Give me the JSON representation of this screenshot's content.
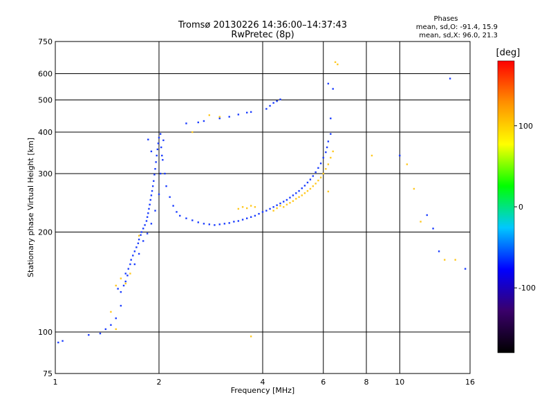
{
  "chart_data": {
    "type": "scatter",
    "title": "Tromsø 20130226 14:36:00–14:37:43",
    "subtitle": "RwPretec (8p)",
    "xlabel": "Frequency [MHz]",
    "ylabel": "Stationary phase Virtual Height [km]",
    "xscale": "log",
    "yscale": "log",
    "xlim": [
      1,
      16
    ],
    "ylim": [
      75,
      750
    ],
    "x_ticks": [
      1,
      2,
      4,
      6,
      8,
      10,
      16
    ],
    "y_ticks": [
      75,
      100,
      200,
      300,
      400,
      500,
      600,
      750
    ],
    "grid": true,
    "phase_box": {
      "title": "Phases",
      "line_o": "mean, sd,O: -91.4, 15.9",
      "line_x": "mean, sd,X:  96.0, 21.3"
    },
    "colorbar": {
      "label": "[deg]",
      "min": -180,
      "max": 180,
      "ticks": [
        100,
        0,
        -100
      ],
      "stops": [
        "#000000",
        "#3a006a",
        "#0000ff",
        "#00c8ff",
        "#00ff00",
        "#ffff00",
        "#ff9000",
        "#ff0000"
      ]
    },
    "series": [
      {
        "name": "O-mode",
        "mean_phase": -91.4,
        "sd_phase": 15.9,
        "color": "#1a3cff",
        "points": [
          [
            1.02,
            93
          ],
          [
            1.05,
            94
          ],
          [
            1.25,
            98
          ],
          [
            1.35,
            99
          ],
          [
            1.4,
            102
          ],
          [
            1.45,
            105
          ],
          [
            1.5,
            110
          ],
          [
            1.55,
            120
          ],
          [
            1.55,
            132
          ],
          [
            1.58,
            138
          ],
          [
            1.6,
            142
          ],
          [
            1.62,
            148
          ],
          [
            1.63,
            155
          ],
          [
            1.65,
            160
          ],
          [
            1.66,
            165
          ],
          [
            1.68,
            170
          ],
          [
            1.7,
            175
          ],
          [
            1.72,
            180
          ],
          [
            1.74,
            185
          ],
          [
            1.75,
            190
          ],
          [
            1.77,
            196
          ],
          [
            1.78,
            200
          ],
          [
            1.8,
            205
          ],
          [
            1.82,
            210
          ],
          [
            1.84,
            216
          ],
          [
            1.85,
            222
          ],
          [
            1.86,
            228
          ],
          [
            1.87,
            235
          ],
          [
            1.88,
            242
          ],
          [
            1.89,
            250
          ],
          [
            1.9,
            258
          ],
          [
            1.91,
            266
          ],
          [
            1.92,
            275
          ],
          [
            1.93,
            285
          ],
          [
            1.94,
            298
          ],
          [
            1.95,
            310
          ],
          [
            1.96,
            325
          ],
          [
            1.97,
            340
          ],
          [
            1.98,
            355
          ],
          [
            1.99,
            370
          ],
          [
            2.0,
            385
          ],
          [
            2.02,
            395
          ],
          [
            1.86,
            380
          ],
          [
            1.9,
            350
          ],
          [
            2.03,
            360
          ],
          [
            2.05,
            330
          ],
          [
            2.08,
            300
          ],
          [
            2.1,
            275
          ],
          [
            2.15,
            255
          ],
          [
            2.2,
            240
          ],
          [
            2.25,
            230
          ],
          [
            2.3,
            224
          ],
          [
            2.4,
            220
          ],
          [
            2.5,
            217
          ],
          [
            2.6,
            214
          ],
          [
            2.7,
            212
          ],
          [
            2.8,
            211
          ],
          [
            2.9,
            210
          ],
          [
            3.0,
            211
          ],
          [
            3.1,
            212
          ],
          [
            3.2,
            213
          ],
          [
            3.3,
            215
          ],
          [
            3.4,
            216
          ],
          [
            3.5,
            218
          ],
          [
            3.6,
            220
          ],
          [
            3.7,
            222
          ],
          [
            3.8,
            224
          ],
          [
            3.9,
            227
          ],
          [
            4.0,
            230
          ],
          [
            4.1,
            232
          ],
          [
            4.2,
            235
          ],
          [
            4.3,
            238
          ],
          [
            4.4,
            241
          ],
          [
            4.5,
            244
          ],
          [
            4.6,
            247
          ],
          [
            4.7,
            250
          ],
          [
            4.8,
            254
          ],
          [
            4.9,
            258
          ],
          [
            5.0,
            262
          ],
          [
            5.1,
            266
          ],
          [
            5.2,
            271
          ],
          [
            5.3,
            276
          ],
          [
            5.4,
            282
          ],
          [
            5.5,
            288
          ],
          [
            5.6,
            295
          ],
          [
            5.7,
            303
          ],
          [
            5.8,
            312
          ],
          [
            5.9,
            322
          ],
          [
            6.0,
            335
          ],
          [
            6.1,
            348
          ],
          [
            6.15,
            360
          ],
          [
            6.2,
            375
          ],
          [
            6.3,
            395
          ],
          [
            2.4,
            425
          ],
          [
            2.6,
            428
          ],
          [
            2.7,
            432
          ],
          [
            3.0,
            440
          ],
          [
            3.2,
            445
          ],
          [
            3.4,
            452
          ],
          [
            3.6,
            458
          ],
          [
            3.7,
            460
          ],
          [
            4.1,
            470
          ],
          [
            4.2,
            480
          ],
          [
            4.3,
            490
          ],
          [
            4.4,
            496
          ],
          [
            4.5,
            502
          ],
          [
            1.52,
            135
          ],
          [
            1.6,
            150
          ],
          [
            1.7,
            160
          ],
          [
            1.75,
            172
          ],
          [
            1.8,
            188
          ],
          [
            1.85,
            198
          ],
          [
            1.9,
            212
          ],
          [
            1.95,
            232
          ],
          [
            2.0,
            260
          ],
          [
            2.02,
            300
          ],
          [
            2.04,
            340
          ],
          [
            2.06,
            378
          ],
          [
            6.2,
            560
          ],
          [
            6.3,
            440
          ],
          [
            6.4,
            540
          ],
          [
            10.0,
            340
          ],
          [
            12.0,
            225
          ],
          [
            12.5,
            205
          ],
          [
            13.0,
            175
          ],
          [
            14.0,
            580
          ],
          [
            15.5,
            155
          ]
        ]
      },
      {
        "name": "X-mode",
        "mean_phase": 96.0,
        "sd_phase": 21.3,
        "color": "#ffc81e",
        "points": [
          [
            1.5,
            138
          ],
          [
            1.55,
            145
          ],
          [
            1.6,
            140
          ],
          [
            1.65,
            150
          ],
          [
            3.4,
            235
          ],
          [
            3.5,
            238
          ],
          [
            3.6,
            236
          ],
          [
            3.7,
            240
          ],
          [
            3.8,
            238
          ],
          [
            4.3,
            232
          ],
          [
            4.4,
            236
          ],
          [
            4.5,
            240
          ],
          [
            4.6,
            238
          ],
          [
            4.7,
            242
          ],
          [
            4.8,
            245
          ],
          [
            4.9,
            248
          ],
          [
            5.0,
            252
          ],
          [
            5.1,
            255
          ],
          [
            5.2,
            258
          ],
          [
            5.3,
            262
          ],
          [
            5.4,
            266
          ],
          [
            5.5,
            270
          ],
          [
            5.6,
            275
          ],
          [
            5.7,
            280
          ],
          [
            5.8,
            286
          ],
          [
            5.9,
            292
          ],
          [
            6.0,
            300
          ],
          [
            6.1,
            310
          ],
          [
            6.2,
            320
          ],
          [
            6.3,
            335
          ],
          [
            6.4,
            350
          ],
          [
            2.5,
            400
          ],
          [
            2.8,
            450
          ],
          [
            3.0,
            445
          ],
          [
            6.5,
            650
          ],
          [
            6.6,
            640
          ],
          [
            8.3,
            340
          ],
          [
            10.5,
            320
          ],
          [
            11.0,
            270
          ],
          [
            11.5,
            215
          ],
          [
            13.5,
            165
          ],
          [
            14.5,
            165
          ],
          [
            1.45,
            115
          ],
          [
            1.5,
            102
          ],
          [
            3.7,
            97
          ],
          [
            1.75,
            195
          ],
          [
            6.2,
            265
          ]
        ]
      }
    ]
  }
}
